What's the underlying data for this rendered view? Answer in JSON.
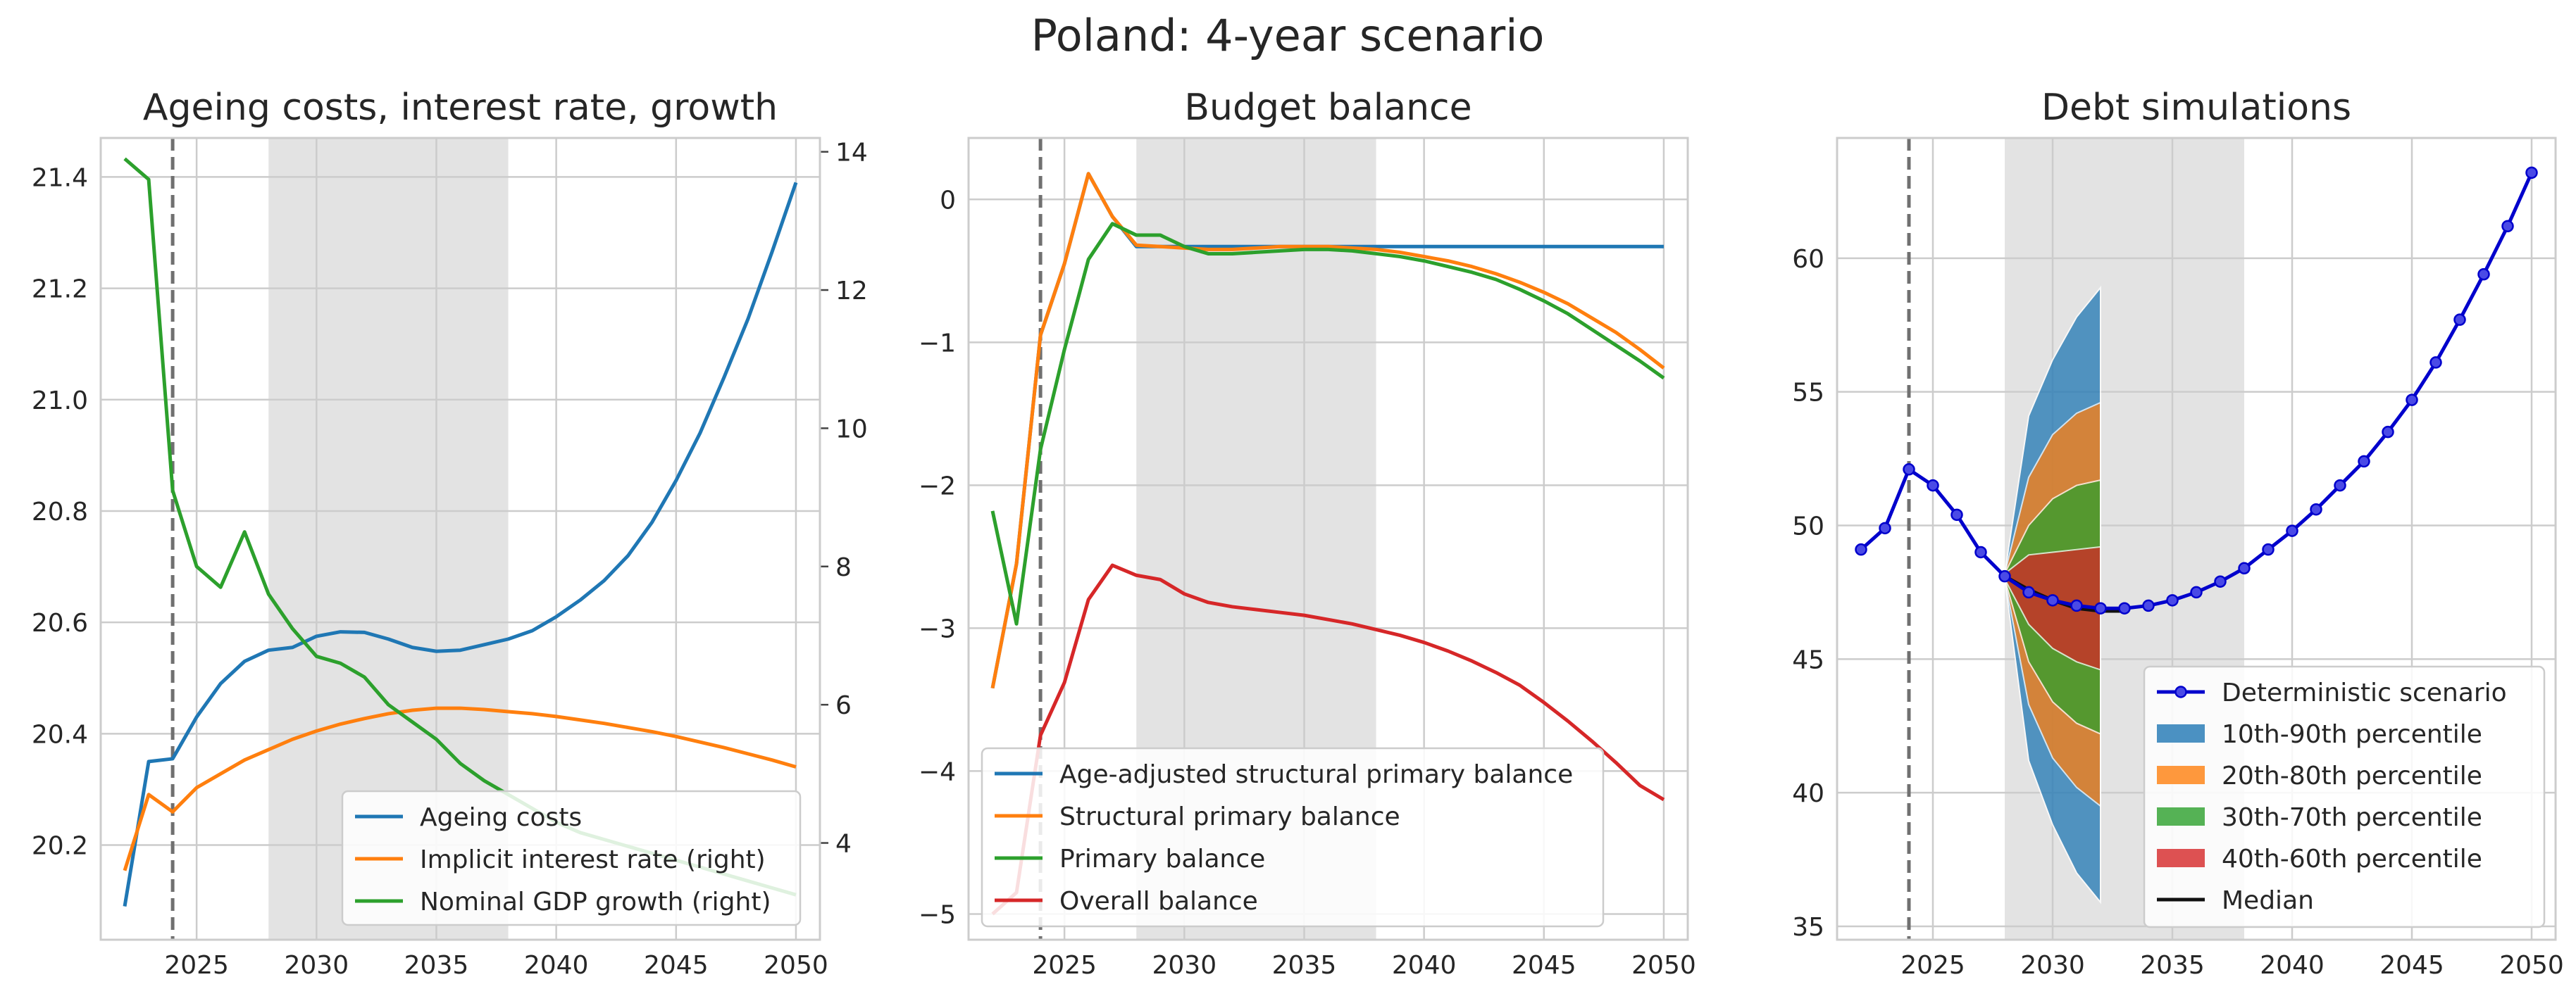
{
  "figure": {
    "title": "Poland: 4-year scenario"
  },
  "colors": {
    "blue": "#1f77b4",
    "orange": "#ff7f0e",
    "green": "#2ca02c",
    "red": "#d62728",
    "grid": "#cccccc",
    "shade": "#d9d9d9",
    "vline": "#707070",
    "det": "#0000cc",
    "median": "#111111"
  },
  "chart_data": [
    {
      "type": "line",
      "title": "Ageing costs, interest rate, growth",
      "xlim": [
        2021,
        2051
      ],
      "ylim": [
        20.03,
        21.47
      ],
      "y2lim": [
        2.6,
        14.2
      ],
      "xticks": [
        2025,
        2030,
        2035,
        2040,
        2045,
        2050
      ],
      "yticks": [
        20.2,
        20.4,
        20.6,
        20.8,
        21.0,
        21.2,
        21.4
      ],
      "yticklabels": [
        "20.2",
        "20.4",
        "20.6",
        "20.8",
        "21.0",
        "21.2",
        "21.4"
      ],
      "y2ticks": [
        4,
        6,
        8,
        10,
        12,
        14
      ],
      "y2ticklabels": [
        "4",
        "6",
        "8",
        "10",
        "12",
        "14"
      ],
      "vline": 2024,
      "shade": [
        2028,
        2038
      ],
      "legend_loc": "lower-right",
      "x": [
        2022,
        2023,
        2024,
        2025,
        2026,
        2027,
        2028,
        2029,
        2030,
        2031,
        2032,
        2033,
        2034,
        2035,
        2036,
        2037,
        2038,
        2039,
        2040,
        2041,
        2042,
        2043,
        2044,
        2045,
        2046,
        2047,
        2048,
        2049,
        2050
      ],
      "series": [
        {
          "name": "Ageing costs",
          "color": "blue",
          "axis": "left",
          "values": [
            20.09,
            20.35,
            20.355,
            20.43,
            20.49,
            20.53,
            20.55,
            20.555,
            20.575,
            20.583,
            20.582,
            20.57,
            20.555,
            20.548,
            20.55,
            20.56,
            20.57,
            20.585,
            20.61,
            20.64,
            20.675,
            20.72,
            20.78,
            20.855,
            20.94,
            21.04,
            21.145,
            21.265,
            21.39
          ]
        },
        {
          "name": "Implicit interest rate (right)",
          "color": "orange",
          "axis": "right",
          "values": [
            3.6,
            4.7,
            4.45,
            4.8,
            5.0,
            5.2,
            5.35,
            5.5,
            5.62,
            5.72,
            5.8,
            5.87,
            5.92,
            5.95,
            5.95,
            5.93,
            5.9,
            5.87,
            5.83,
            5.78,
            5.73,
            5.67,
            5.61,
            5.54,
            5.46,
            5.38,
            5.29,
            5.2,
            5.1
          ]
        },
        {
          "name": "Nominal GDP growth (right)",
          "color": "green",
          "axis": "right",
          "values": [
            13.9,
            13.6,
            9.1,
            8.0,
            7.7,
            8.5,
            7.6,
            7.1,
            6.7,
            6.6,
            6.4,
            6.0,
            5.75,
            5.5,
            5.15,
            4.9,
            4.7,
            4.5,
            4.3,
            4.15,
            4.05,
            3.95,
            3.85,
            3.75,
            3.65,
            3.55,
            3.45,
            3.35,
            3.25
          ]
        }
      ]
    },
    {
      "type": "line",
      "title": "Budget balance",
      "xlim": [
        2021,
        2051
      ],
      "ylim": [
        -5.18,
        0.43
      ],
      "xticks": [
        2025,
        2030,
        2035,
        2040,
        2045,
        2050
      ],
      "yticks": [
        -5,
        -4,
        -3,
        -2,
        -1,
        0
      ],
      "yticklabels": [
        "−5",
        "−4",
        "−3",
        "−2",
        "−1",
        "0"
      ],
      "vline": 2024,
      "shade": [
        2028,
        2038
      ],
      "legend_loc": "lower-left",
      "x": [
        2022,
        2023,
        2024,
        2025,
        2026,
        2027,
        2028,
        2029,
        2030,
        2031,
        2032,
        2033,
        2034,
        2035,
        2036,
        2037,
        2038,
        2039,
        2040,
        2041,
        2042,
        2043,
        2044,
        2045,
        2046,
        2047,
        2048,
        2049,
        2050
      ],
      "series": [
        {
          "name": "Age-adjusted structural primary balance",
          "color": "blue",
          "values": [
            -3.42,
            -2.55,
            -0.95,
            -0.45,
            0.18,
            -0.12,
            -0.33,
            -0.33,
            -0.33,
            -0.33,
            -0.33,
            -0.33,
            -0.33,
            -0.33,
            -0.33,
            -0.33,
            -0.33,
            -0.33,
            -0.33,
            -0.33,
            -0.33,
            -0.33,
            -0.33,
            -0.33,
            -0.33,
            -0.33,
            -0.33,
            -0.33,
            -0.33
          ]
        },
        {
          "name": "Structural primary balance",
          "color": "orange",
          "values": [
            -3.42,
            -2.55,
            -0.95,
            -0.45,
            0.18,
            -0.12,
            -0.32,
            -0.33,
            -0.34,
            -0.35,
            -0.35,
            -0.34,
            -0.33,
            -0.33,
            -0.33,
            -0.34,
            -0.35,
            -0.37,
            -0.4,
            -0.43,
            -0.47,
            -0.52,
            -0.58,
            -0.65,
            -0.73,
            -0.83,
            -0.93,
            -1.05,
            -1.18
          ]
        },
        {
          "name": "Primary balance",
          "color": "green",
          "values": [
            -2.18,
            -2.97,
            -1.75,
            -1.05,
            -0.42,
            -0.17,
            -0.25,
            -0.25,
            -0.33,
            -0.38,
            -0.38,
            -0.37,
            -0.36,
            -0.35,
            -0.35,
            -0.36,
            -0.38,
            -0.4,
            -0.43,
            -0.47,
            -0.51,
            -0.56,
            -0.63,
            -0.71,
            -0.8,
            -0.91,
            -1.02,
            -1.13,
            -1.25
          ]
        },
        {
          "name": "Overall balance",
          "color": "red",
          "values": [
            -5.0,
            -4.85,
            -3.75,
            -3.38,
            -2.8,
            -2.56,
            -2.63,
            -2.66,
            -2.76,
            -2.82,
            -2.85,
            -2.87,
            -2.89,
            -2.91,
            -2.94,
            -2.97,
            -3.01,
            -3.05,
            -3.1,
            -3.16,
            -3.23,
            -3.31,
            -3.4,
            -3.52,
            -3.65,
            -3.79,
            -3.94,
            -4.1,
            -4.2
          ]
        }
      ]
    },
    {
      "type": "line",
      "title": "Debt simulations",
      "xlim": [
        2021,
        2051
      ],
      "ylim": [
        34.5,
        64.5
      ],
      "xticks": [
        2025,
        2030,
        2035,
        2040,
        2045,
        2050
      ],
      "yticks": [
        35,
        40,
        45,
        50,
        55,
        60
      ],
      "yticklabels": [
        "35",
        "40",
        "45",
        "50",
        "55",
        "60"
      ],
      "vline": 2024,
      "shade": [
        2028,
        2038
      ],
      "legend_loc": "lower-right",
      "fan_x": [
        2028,
        2029,
        2030,
        2031,
        2032
      ],
      "fan": [
        {
          "name": "10th-90th percentile",
          "color": "blue",
          "lower": [
            48.0,
            41.2,
            38.8,
            37.0,
            35.9
          ],
          "upper": [
            48.2,
            54.1,
            56.2,
            57.8,
            58.9
          ]
        },
        {
          "name": "20th-80th percentile",
          "color": "orange",
          "lower": [
            48.0,
            43.3,
            41.3,
            40.2,
            39.5
          ],
          "upper": [
            48.2,
            51.8,
            53.4,
            54.2,
            54.6
          ]
        },
        {
          "name": "30th-70th percentile",
          "color": "green",
          "lower": [
            48.0,
            44.9,
            43.4,
            42.6,
            42.2
          ],
          "upper": [
            48.2,
            50.0,
            51.0,
            51.5,
            51.7
          ]
        },
        {
          "name": "40th-60th percentile",
          "color": "red",
          "lower": [
            48.0,
            46.3,
            45.4,
            44.9,
            44.6
          ],
          "upper": [
            48.2,
            48.9,
            49.0,
            49.1,
            49.2
          ]
        }
      ],
      "median": {
        "name": "Median",
        "color": "median",
        "x": [
          2028,
          2029,
          2030,
          2031,
          2032,
          2033
        ],
        "values": [
          48.1,
          47.6,
          47.2,
          46.9,
          46.8,
          46.8
        ]
      },
      "deterministic": {
        "name": "Deterministic scenario",
        "color": "det",
        "x": [
          2022,
          2023,
          2024,
          2025,
          2026,
          2027,
          2028,
          2029,
          2030,
          2031,
          2032,
          2033,
          2034,
          2035,
          2036,
          2037,
          2038,
          2039,
          2040,
          2041,
          2042,
          2043,
          2044,
          2045,
          2046,
          2047,
          2048,
          2049,
          2050
        ],
        "values": [
          49.1,
          49.9,
          52.1,
          51.5,
          50.4,
          49.0,
          48.1,
          47.5,
          47.2,
          47.0,
          46.9,
          46.9,
          47.0,
          47.2,
          47.5,
          47.9,
          48.4,
          49.1,
          49.8,
          50.6,
          51.5,
          52.4,
          53.5,
          54.7,
          56.1,
          57.7,
          59.4,
          61.2,
          63.2
        ]
      }
    }
  ]
}
